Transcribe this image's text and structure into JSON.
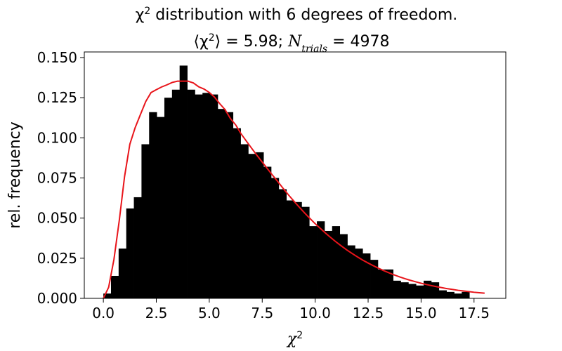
{
  "chart_data": {
    "type": "bar",
    "title_line1_prefix": "χ",
    "title_line1_sup": "2",
    "title_line1_suffix": " distribution with 6 degrees of freedom.",
    "title_line2_open": "⟨χ",
    "title_line2_sup": "2",
    "title_line2_close": "⟩ = 5.98; ",
    "title_line2_N": "N",
    "title_line2_sub": "trials",
    "title_line2_value": " = 4978",
    "xlabel": "χ",
    "xlabel_sup": "2",
    "ylabel": "rel. frequency",
    "xlim": [
      -0.9,
      19.0
    ],
    "ylim": [
      0,
      0.1535
    ],
    "xticks": [
      0.0,
      2.5,
      5.0,
      7.5,
      10.0,
      12.5,
      15.0,
      17.5
    ],
    "xtick_labels": [
      "0.0",
      "2.5",
      "5.0",
      "7.5",
      "10.0",
      "12.5",
      "15.0",
      "17.5"
    ],
    "yticks": [
      0.0,
      0.025,
      0.05,
      0.075,
      0.1,
      0.125,
      0.15
    ],
    "ytick_labels": [
      "0.000",
      "0.025",
      "0.050",
      "0.075",
      "0.100",
      "0.125",
      "0.150"
    ],
    "bin_start": 0.0,
    "bin_width": 0.36,
    "histogram_values": [
      0.003,
      0.014,
      0.031,
      0.056,
      0.063,
      0.096,
      0.116,
      0.113,
      0.125,
      0.13,
      0.145,
      0.13,
      0.127,
      0.128,
      0.127,
      0.118,
      0.116,
      0.106,
      0.096,
      0.09,
      0.091,
      0.082,
      0.075,
      0.068,
      0.061,
      0.06,
      0.057,
      0.045,
      0.048,
      0.042,
      0.045,
      0.04,
      0.033,
      0.031,
      0.028,
      0.024,
      0.018,
      0.018,
      0.011,
      0.01,
      0.009,
      0.008,
      0.011,
      0.01,
      0.005,
      0.004,
      0.003,
      0.004
    ],
    "histogram_color": "#000000",
    "curve_color": "#e8141a",
    "curve": {
      "name": "",
      "x": [
        0.0,
        0.25,
        0.5,
        0.75,
        1.0,
        1.25,
        1.5,
        1.75,
        2.0,
        2.25,
        2.5,
        2.75,
        3.0,
        3.25,
        3.5,
        3.75,
        4.0,
        4.25,
        4.5,
        4.75,
        5.0,
        5.25,
        5.5,
        5.75,
        6.0,
        6.25,
        6.5,
        6.75,
        7.0,
        7.25,
        7.5,
        7.75,
        8.0,
        8.25,
        8.5,
        8.75,
        9.0,
        9.25,
        9.5,
        9.75,
        10.0,
        10.25,
        10.5,
        10.75,
        11.0,
        11.25,
        11.5,
        11.75,
        12.0,
        12.25,
        12.5,
        12.75,
        13.0,
        13.25,
        13.5,
        13.75,
        14.0,
        14.25,
        14.5,
        14.75,
        15.0,
        15.25,
        15.5,
        15.75,
        16.0,
        16.25,
        16.5,
        16.75,
        17.0,
        17.25,
        17.5,
        17.75,
        18.0
      ],
      "y": [
        0.0,
        0.0069,
        0.0243,
        0.0484,
        0.0758,
        0.096,
        0.1063,
        0.1145,
        0.1226,
        0.1282,
        0.13,
        0.1317,
        0.133,
        0.1345,
        0.1353,
        0.1353,
        0.1353,
        0.1342,
        0.1318,
        0.1304,
        0.1283,
        0.1253,
        0.1212,
        0.1175,
        0.112,
        0.108,
        0.1025,
        0.098,
        0.0935,
        0.0891,
        0.0849,
        0.0807,
        0.0765,
        0.0725,
        0.0683,
        0.0643,
        0.0605,
        0.0568,
        0.0532,
        0.0498,
        0.0465,
        0.0435,
        0.0405,
        0.0377,
        0.035,
        0.0325,
        0.0301,
        0.0279,
        0.0258,
        0.0238,
        0.022,
        0.0203,
        0.0187,
        0.0172,
        0.0158,
        0.0145,
        0.0133,
        0.0122,
        0.0112,
        0.0103,
        0.0094,
        0.0086,
        0.0079,
        0.0072,
        0.0066,
        0.006,
        0.0055,
        0.005,
        0.0046,
        0.0042,
        0.0038,
        0.0035,
        0.0032
      ]
    },
    "grid": false,
    "legend": "none"
  }
}
